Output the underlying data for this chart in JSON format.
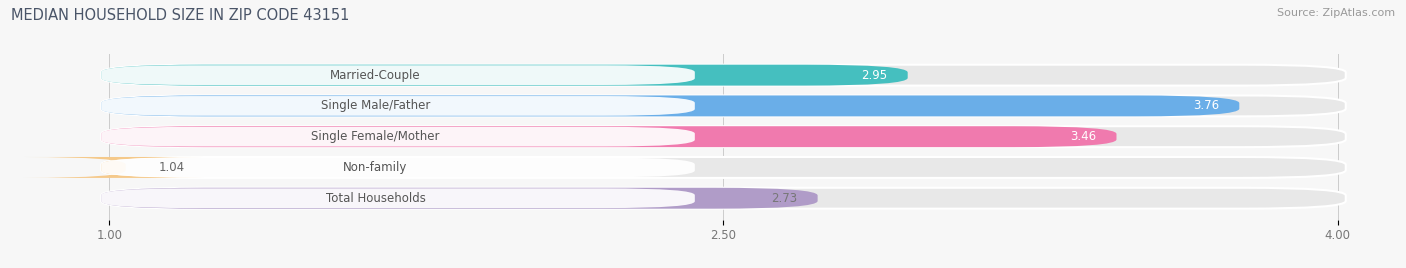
{
  "title": "MEDIAN HOUSEHOLD SIZE IN ZIP CODE 43151",
  "source": "Source: ZipAtlas.com",
  "categories": [
    "Married-Couple",
    "Single Male/Father",
    "Single Female/Mother",
    "Non-family",
    "Total Households"
  ],
  "values": [
    2.95,
    3.76,
    3.46,
    1.04,
    2.73
  ],
  "bar_colors": [
    "#45BFBF",
    "#6AAEE8",
    "#F07AAE",
    "#F5C98A",
    "#B09CC8"
  ],
  "label_colors": [
    "#555555",
    "#555555",
    "#555555",
    "#555555",
    "#555555"
  ],
  "value_colors_inside": [
    "white",
    "white",
    "white",
    "#777777",
    "#777777"
  ],
  "xlim_data": [
    1.0,
    4.0
  ],
  "xlim_display": [
    0.75,
    4.15
  ],
  "xticks": [
    1.0,
    2.5,
    4.0
  ],
  "x_axis_min": 1.0,
  "background_color": "#f7f7f7",
  "bar_bg_color": "#e8e8e8",
  "white_label_bg": "#ffffff",
  "title_fontsize": 10.5,
  "source_fontsize": 8,
  "label_fontsize": 8.5,
  "value_fontsize": 8.5,
  "tick_fontsize": 8.5,
  "bar_height": 0.68,
  "title_color": "#4a5568",
  "grid_color": "#cccccc"
}
